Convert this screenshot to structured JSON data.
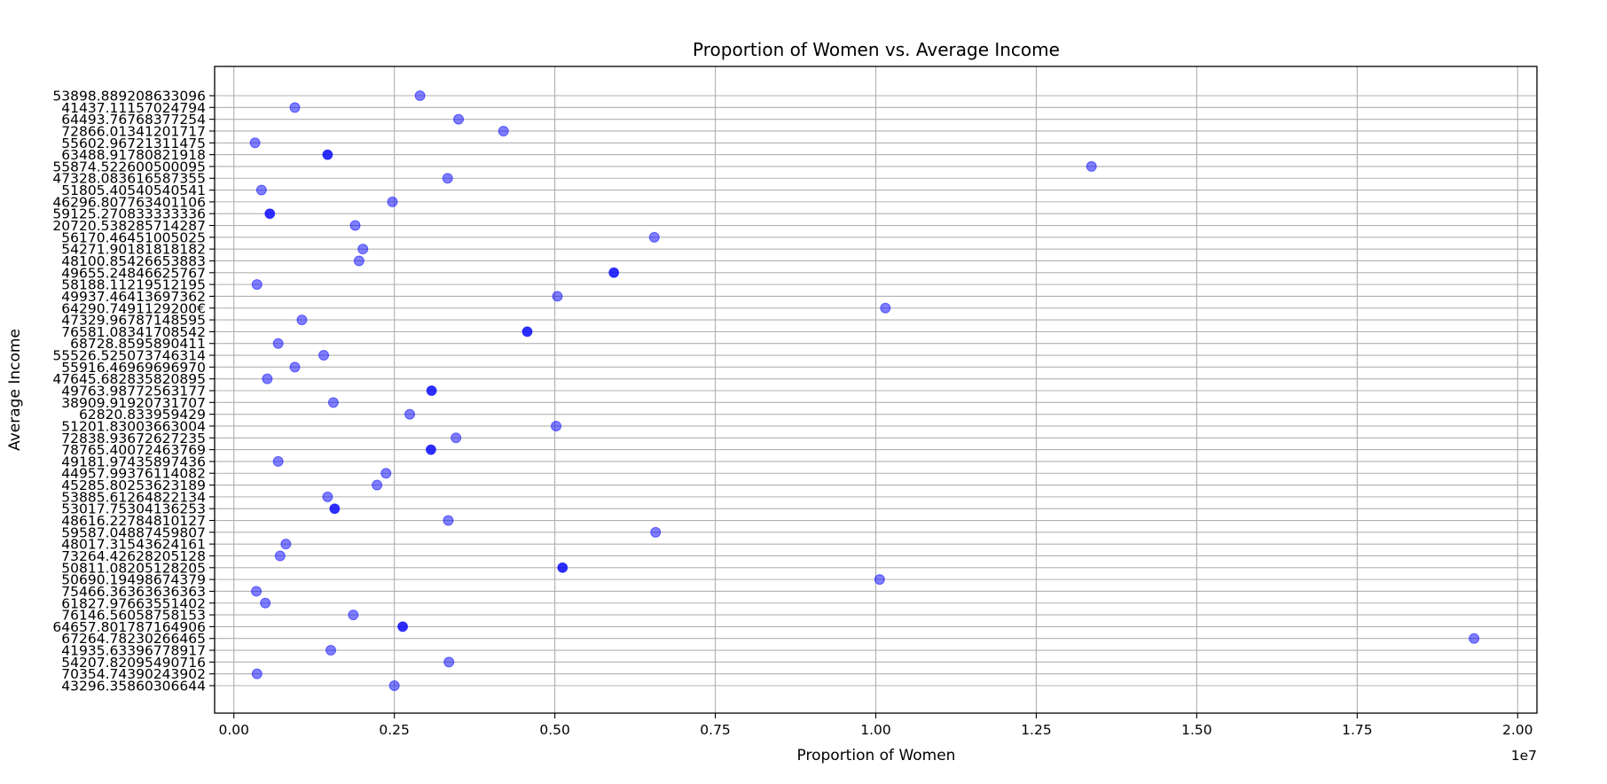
{
  "chart_data": {
    "type": "scatter",
    "title": "Proportion of Women vs. Average Income",
    "xlabel": "Proportion of Women",
    "ylabel": "Average Income",
    "x_scale_label": "1e7",
    "xlim": [
      -300000,
      20300000
    ],
    "x_ticks": [
      0,
      2500000,
      5000000,
      7500000,
      10000000,
      12500000,
      15000000,
      17500000,
      20000000
    ],
    "x_tick_labels": [
      "0.00",
      "0.25",
      "0.50",
      "0.75",
      "1.00",
      "1.25",
      "1.50",
      "1.75",
      "2.00"
    ],
    "grid": true,
    "point_color": "#0000ff",
    "point_alpha": 0.5,
    "categories": [
      "53898.889208633096",
      "41437.11157024794",
      "64493.76768377254",
      "72866.01341201717",
      "55602.96721311475",
      "63488.91780821918",
      "55874.522600500095",
      "47328.083616587355",
      "51805.40540540541",
      "46296.807763401106",
      "59125.270833333336",
      "20720.538285714287",
      "56170.46451005025",
      "54271.90181818182",
      "48100.85426653883",
      "49655.24846625767",
      "58188.11219512195",
      "49937.46413697362",
      "64290.7491129200€",
      "47329.96787148595",
      "76581.08341708542",
      "68728.8595890411",
      "55526.525073746314",
      "55916.46969696970",
      "47645.682835820895",
      "49763.98772563177",
      "38909.91920731707",
      "62820.833959429",
      "51201.83003663004",
      "72838.93672627235",
      "78765.40072463769",
      "49181.97435897436",
      "44957.99376114082",
      "45285.80253623189",
      "53885.61264822134",
      "53017.75304136253",
      "48616.22784810127",
      "59587.04887459807",
      "48017.31543624161",
      "73264.42628205128",
      "50811.08205128205",
      "50690.19498674379",
      "75466.36363636363",
      "61827.97663551402",
      "76146.56058758153",
      "64657.801787164906",
      "67264.78230266465",
      "41935.63396778917",
      "54207.82095490716",
      "70354.74390243902",
      "43296.35860306644"
    ],
    "x": [
      2900000,
      950000,
      3500000,
      4200000,
      330000,
      1460000,
      13360000,
      3330000,
      430000,
      2470000,
      560000,
      1890000,
      6550000,
      2010000,
      1950000,
      5920000,
      360000,
      5040000,
      10150000,
      1060000,
      4570000,
      690000,
      1400000,
      950000,
      520000,
      3080000,
      1550000,
      2740000,
      5020000,
      3460000,
      3070000,
      690000,
      2370000,
      2230000,
      1460000,
      1570000,
      3340000,
      6570000,
      810000,
      720000,
      5120000,
      10060000,
      350000,
      490000,
      1860000,
      2630000,
      19320000,
      1510000,
      3350000,
      360000,
      2500000
    ],
    "multiplicity": [
      1,
      1,
      1,
      1,
      1,
      2,
      1,
      1,
      1,
      1,
      2,
      1,
      1,
      1,
      1,
      2,
      1,
      1,
      1,
      1,
      2,
      1,
      1,
      1,
      1,
      2,
      1,
      1,
      1,
      1,
      2,
      1,
      1,
      1,
      1,
      2,
      1,
      1,
      1,
      1,
      2,
      1,
      1,
      1,
      1,
      2,
      1,
      1,
      1,
      1,
      1
    ]
  }
}
